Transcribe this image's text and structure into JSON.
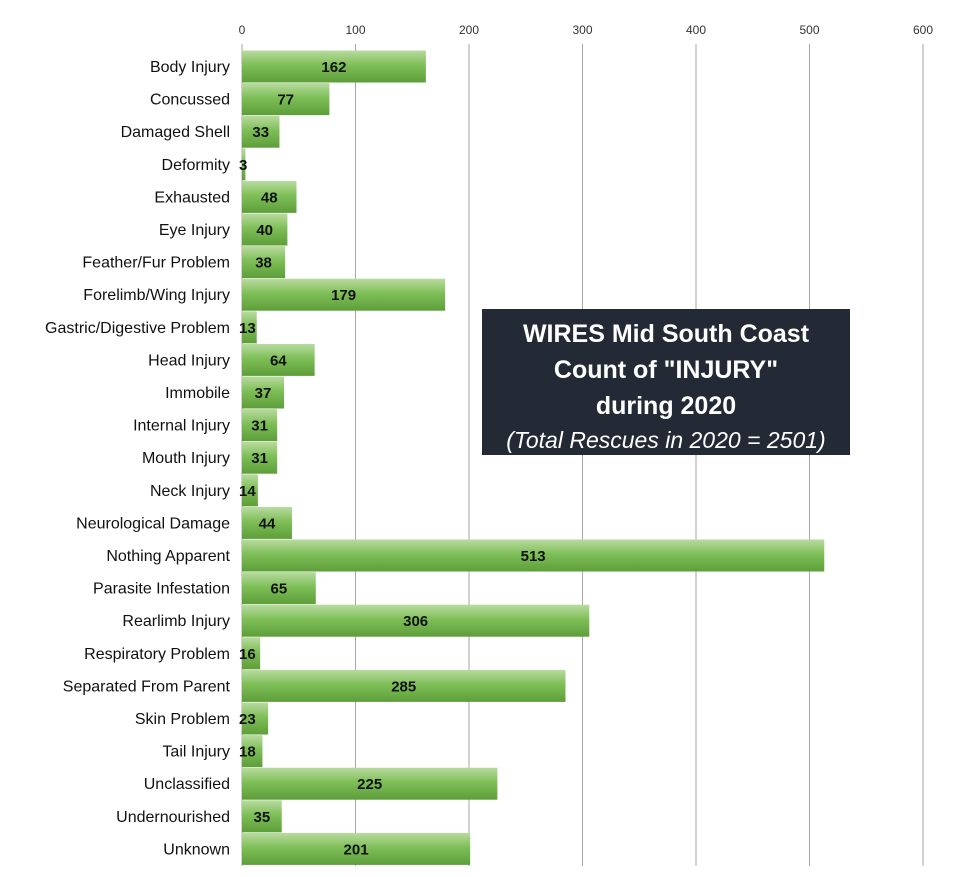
{
  "chart_data": {
    "type": "bar",
    "orientation": "horizontal",
    "title_lines": [
      "WIRES Mid South Coast",
      "Count of \"INJURY\"",
      "during 2020"
    ],
    "subtitle": "(Total Rescues in 2020 =  2501)",
    "xlim": [
      0,
      600
    ],
    "ticks": [
      0,
      100,
      200,
      300,
      400,
      500,
      600
    ],
    "grid": true,
    "bar_color": "#70ad47",
    "categories": [
      "Body Injury",
      "Concussed",
      "Damaged Shell",
      "Deformity",
      "Exhausted",
      "Eye Injury",
      "Feather/Fur Problem",
      "Forelimb/Wing Injury",
      "Gastric/Digestive Problem",
      "Head Injury",
      "Immobile",
      "Internal Injury",
      "Mouth Injury",
      "Neck Injury",
      "Neurological Damage",
      "Nothing Apparent",
      "Parasite Infestation",
      "Rearlimb Injury",
      "Respiratory Problem",
      "Separated From Parent",
      "Skin Problem",
      "Tail Injury",
      "Unclassified",
      "Undernourished",
      "Unknown"
    ],
    "values": [
      162,
      77,
      33,
      3,
      48,
      40,
      38,
      179,
      13,
      64,
      37,
      31,
      31,
      14,
      44,
      513,
      65,
      306,
      16,
      285,
      23,
      18,
      225,
      35,
      201
    ]
  }
}
